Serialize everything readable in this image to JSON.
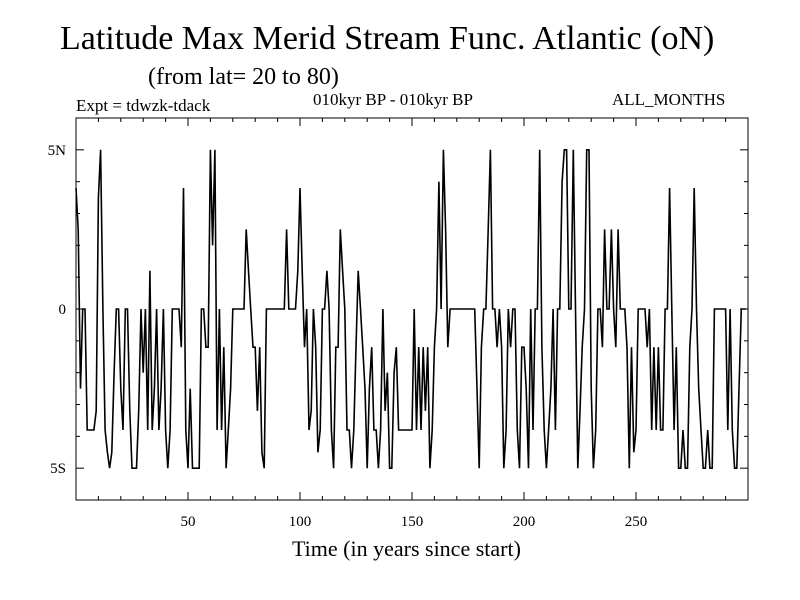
{
  "header": {
    "title": "Latitude Max Merid Stream Func. Atlantic (oN)",
    "subtitle": "(from lat= 20 to 80)",
    "experiment": "Expt = tdwzk-tdack",
    "period": "010kyr BP - 010kyr BP",
    "months": "ALL_MONTHS"
  },
  "chart_data": {
    "type": "line",
    "title": "Latitude Max Merid Stream Func. Atlantic (oN)",
    "subtitle": "(from lat= 20 to 80)",
    "xlabel": "Time (in years since start)",
    "ylabel": "",
    "xlim": [
      0,
      300
    ],
    "ylim": [
      -6,
      6
    ],
    "x_ticks": [
      50,
      100,
      150,
      200,
      250
    ],
    "x_tick_labels": [
      "50",
      "100",
      "150",
      "200",
      "250"
    ],
    "y_ticks": [
      5,
      0,
      -5
    ],
    "y_tick_labels": [
      "5N",
      "0",
      "5S"
    ],
    "grid": false,
    "line_color": "#000000",
    "series": [
      {
        "values": [
          [
            0,
            3.8
          ],
          [
            1,
            2.5
          ],
          [
            2,
            -2.5
          ],
          [
            3,
            0
          ],
          [
            4,
            0
          ],
          [
            5,
            -3.8
          ],
          [
            7,
            -3.8
          ],
          [
            8,
            -3.8
          ],
          [
            9,
            -3.2
          ],
          [
            10,
            3.5
          ],
          [
            11,
            5
          ],
          [
            12,
            0
          ],
          [
            13,
            -3.8
          ],
          [
            14,
            -4.5
          ],
          [
            15,
            -5
          ],
          [
            16,
            -4.5
          ],
          [
            17,
            -2
          ],
          [
            18,
            0
          ],
          [
            19,
            0
          ],
          [
            20,
            -2.5
          ],
          [
            21,
            -3.8
          ],
          [
            22,
            0
          ],
          [
            23,
            0
          ],
          [
            24,
            -3.2
          ],
          [
            25,
            -5
          ],
          [
            26,
            -5
          ],
          [
            27,
            -5
          ],
          [
            28,
            -3.2
          ],
          [
            29,
            0
          ],
          [
            30,
            -2
          ],
          [
            31,
            0
          ],
          [
            32,
            -3.8
          ],
          [
            33,
            1.2
          ],
          [
            34,
            -3.8
          ],
          [
            35,
            -2.5
          ],
          [
            36,
            0
          ],
          [
            37,
            -3.8
          ],
          [
            38,
            -2.5
          ],
          [
            39,
            0
          ],
          [
            40,
            -3.8
          ],
          [
            41,
            -5
          ],
          [
            42,
            -3.8
          ],
          [
            43,
            0
          ],
          [
            44,
            0
          ],
          [
            45,
            0
          ],
          [
            46,
            0
          ],
          [
            47,
            -1.2
          ],
          [
            48,
            3.8
          ],
          [
            49,
            -3.8
          ],
          [
            50,
            -5
          ],
          [
            51,
            -2.5
          ],
          [
            52,
            -5
          ],
          [
            53,
            -5
          ],
          [
            54,
            -5
          ],
          [
            55,
            -5
          ],
          [
            56,
            0
          ],
          [
            57,
            0
          ],
          [
            58,
            -1.2
          ],
          [
            59,
            -1.2
          ],
          [
            60,
            5
          ],
          [
            61,
            2
          ],
          [
            62,
            5
          ],
          [
            63,
            -3.8
          ],
          [
            64,
            0
          ],
          [
            65,
            -3.8
          ],
          [
            66,
            -1.2
          ],
          [
            67,
            -5
          ],
          [
            68,
            -3.8
          ],
          [
            69,
            -2.5
          ],
          [
            70,
            0
          ],
          [
            71,
            0
          ],
          [
            72,
            0
          ],
          [
            73,
            0
          ],
          [
            74,
            0
          ],
          [
            75,
            0
          ],
          [
            76,
            2.5
          ],
          [
            77,
            1.2
          ],
          [
            78,
            0
          ],
          [
            79,
            -1.2
          ],
          [
            80,
            -1.2
          ],
          [
            81,
            -3.2
          ],
          [
            82,
            -1.2
          ],
          [
            83,
            -4.5
          ],
          [
            84,
            -5
          ],
          [
            85,
            0
          ],
          [
            86,
            0
          ],
          [
            87,
            0
          ],
          [
            88,
            0
          ],
          [
            89,
            0
          ],
          [
            90,
            0
          ],
          [
            91,
            0
          ],
          [
            92,
            0
          ],
          [
            93,
            0
          ],
          [
            94,
            2.5
          ],
          [
            95,
            0
          ],
          [
            96,
            0
          ],
          [
            97,
            0
          ],
          [
            98,
            0
          ],
          [
            99,
            1.2
          ],
          [
            100,
            3.8
          ],
          [
            101,
            1.2
          ],
          [
            102,
            -1.2
          ],
          [
            103,
            0
          ],
          [
            104,
            -3.8
          ],
          [
            105,
            -3.2
          ],
          [
            106,
            0
          ],
          [
            107,
            -1.2
          ],
          [
            108,
            -4.5
          ],
          [
            109,
            -3.8
          ],
          [
            110,
            0
          ],
          [
            111,
            0
          ],
          [
            112,
            1.2
          ],
          [
            113,
            0
          ],
          [
            114,
            -3.8
          ],
          [
            115,
            -5
          ],
          [
            116,
            -1.2
          ],
          [
            117,
            -1.2
          ],
          [
            118,
            2.5
          ],
          [
            119,
            1.2
          ],
          [
            120,
            0
          ],
          [
            121,
            -3.8
          ],
          [
            122,
            -3.8
          ],
          [
            123,
            -5
          ],
          [
            124,
            -3.8
          ],
          [
            125,
            -1.2
          ],
          [
            126,
            1.2
          ],
          [
            127,
            0
          ],
          [
            128,
            -1.2
          ],
          [
            129,
            -2.5
          ],
          [
            130,
            -5
          ],
          [
            131,
            -2.5
          ],
          [
            132,
            -1.2
          ],
          [
            133,
            -3.8
          ],
          [
            134,
            -3.8
          ],
          [
            135,
            -5
          ],
          [
            136,
            -3.8
          ],
          [
            137,
            0
          ],
          [
            138,
            -3.2
          ],
          [
            139,
            -2
          ],
          [
            140,
            -5
          ],
          [
            141,
            -5
          ],
          [
            142,
            -2
          ],
          [
            143,
            -1.2
          ],
          [
            144,
            -3.8
          ],
          [
            145,
            -3.8
          ],
          [
            146,
            -3.8
          ],
          [
            147,
            -3.8
          ],
          [
            148,
            -3.8
          ],
          [
            149,
            -3.8
          ],
          [
            150,
            -3.8
          ],
          [
            151,
            0
          ],
          [
            152,
            -3.8
          ],
          [
            153,
            -1.2
          ],
          [
            154,
            -3.8
          ],
          [
            155,
            -1.2
          ],
          [
            156,
            -3.2
          ],
          [
            157,
            -1.2
          ],
          [
            158,
            -5
          ],
          [
            159,
            -3.8
          ],
          [
            160,
            -1.2
          ],
          [
            161,
            0
          ],
          [
            162,
            4
          ],
          [
            163,
            0
          ],
          [
            164,
            5
          ],
          [
            165,
            2.5
          ],
          [
            166,
            -1.2
          ],
          [
            167,
            0
          ],
          [
            168,
            0
          ],
          [
            169,
            0
          ],
          [
            170,
            0
          ],
          [
            171,
            0
          ],
          [
            172,
            0
          ],
          [
            173,
            0
          ],
          [
            174,
            0
          ],
          [
            175,
            0
          ],
          [
            176,
            0
          ],
          [
            177,
            0
          ],
          [
            178,
            0
          ],
          [
            179,
            -2.5
          ],
          [
            180,
            -5
          ],
          [
            181,
            -1.2
          ],
          [
            182,
            0
          ],
          [
            183,
            0
          ],
          [
            184,
            2.5
          ],
          [
            185,
            5
          ],
          [
            186,
            0
          ],
          [
            187,
            0
          ],
          [
            188,
            -1.2
          ],
          [
            189,
            0
          ],
          [
            190,
            -1.2
          ],
          [
            191,
            -5
          ],
          [
            192,
            -3.8
          ],
          [
            193,
            0
          ],
          [
            194,
            -1.2
          ],
          [
            195,
            0
          ],
          [
            196,
            0
          ],
          [
            197,
            -3.8
          ],
          [
            198,
            -5
          ],
          [
            199,
            -1.2
          ],
          [
            200,
            -1.2
          ],
          [
            201,
            -2.5
          ],
          [
            202,
            -5
          ],
          [
            203,
            0
          ],
          [
            204,
            -3.8
          ],
          [
            205,
            0
          ],
          [
            206,
            0
          ],
          [
            207,
            5
          ],
          [
            208,
            -1.2
          ],
          [
            209,
            -3.8
          ],
          [
            210,
            -5
          ],
          [
            211,
            -3.8
          ],
          [
            212,
            -2.5
          ],
          [
            213,
            0
          ],
          [
            214,
            -3.8
          ],
          [
            215,
            0
          ],
          [
            216,
            0
          ],
          [
            217,
            4
          ],
          [
            218,
            5
          ],
          [
            219,
            5
          ],
          [
            220,
            0
          ],
          [
            221,
            0
          ],
          [
            222,
            5
          ],
          [
            223,
            0
          ],
          [
            224,
            -5
          ],
          [
            225,
            -3.2
          ],
          [
            226,
            -1.2
          ],
          [
            227,
            0
          ],
          [
            228,
            5
          ],
          [
            229,
            5
          ],
          [
            230,
            -2.5
          ],
          [
            231,
            -5
          ],
          [
            232,
            -3.8
          ],
          [
            233,
            0
          ],
          [
            234,
            0
          ],
          [
            235,
            -1.2
          ],
          [
            236,
            2.5
          ],
          [
            237,
            0
          ],
          [
            238,
            0
          ],
          [
            239,
            2.5
          ],
          [
            240,
            0
          ],
          [
            241,
            -1.2
          ],
          [
            242,
            2.5
          ],
          [
            243,
            0
          ],
          [
            244,
            0
          ],
          [
            245,
            0
          ],
          [
            246,
            -1.2
          ],
          [
            247,
            -5
          ],
          [
            248,
            -1.2
          ],
          [
            249,
            -4.5
          ],
          [
            250,
            -3.8
          ],
          [
            251,
            0
          ],
          [
            252,
            0
          ],
          [
            253,
            0
          ],
          [
            254,
            0
          ],
          [
            255,
            -1.2
          ],
          [
            256,
            0
          ],
          [
            257,
            -3.8
          ],
          [
            258,
            -1.2
          ],
          [
            259,
            -3.8
          ],
          [
            260,
            -1.2
          ],
          [
            261,
            -3.8
          ],
          [
            262,
            -3.8
          ],
          [
            263,
            0
          ],
          [
            264,
            0
          ],
          [
            265,
            3.8
          ],
          [
            266,
            0
          ],
          [
            267,
            -3.8
          ],
          [
            268,
            -1.2
          ],
          [
            269,
            -5
          ],
          [
            270,
            -5
          ],
          [
            271,
            -3.8
          ],
          [
            272,
            -5
          ],
          [
            273,
            -5
          ],
          [
            274,
            -1.2
          ],
          [
            275,
            0
          ],
          [
            276,
            3.8
          ],
          [
            277,
            0
          ],
          [
            278,
            -2.5
          ],
          [
            279,
            -3.8
          ],
          [
            280,
            -5
          ],
          [
            281,
            -5
          ],
          [
            282,
            -3.8
          ],
          [
            283,
            -5
          ],
          [
            284,
            -5
          ],
          [
            285,
            0
          ],
          [
            286,
            0
          ],
          [
            287,
            0
          ],
          [
            288,
            0
          ],
          [
            289,
            0
          ],
          [
            290,
            0
          ],
          [
            291,
            -3.8
          ],
          [
            292,
            0
          ],
          [
            293,
            -3.8
          ],
          [
            294,
            -5
          ],
          [
            295,
            -5
          ],
          [
            296,
            -2.5
          ],
          [
            297,
            0
          ],
          [
            298,
            0
          ],
          [
            299,
            0
          ]
        ]
      }
    ]
  }
}
